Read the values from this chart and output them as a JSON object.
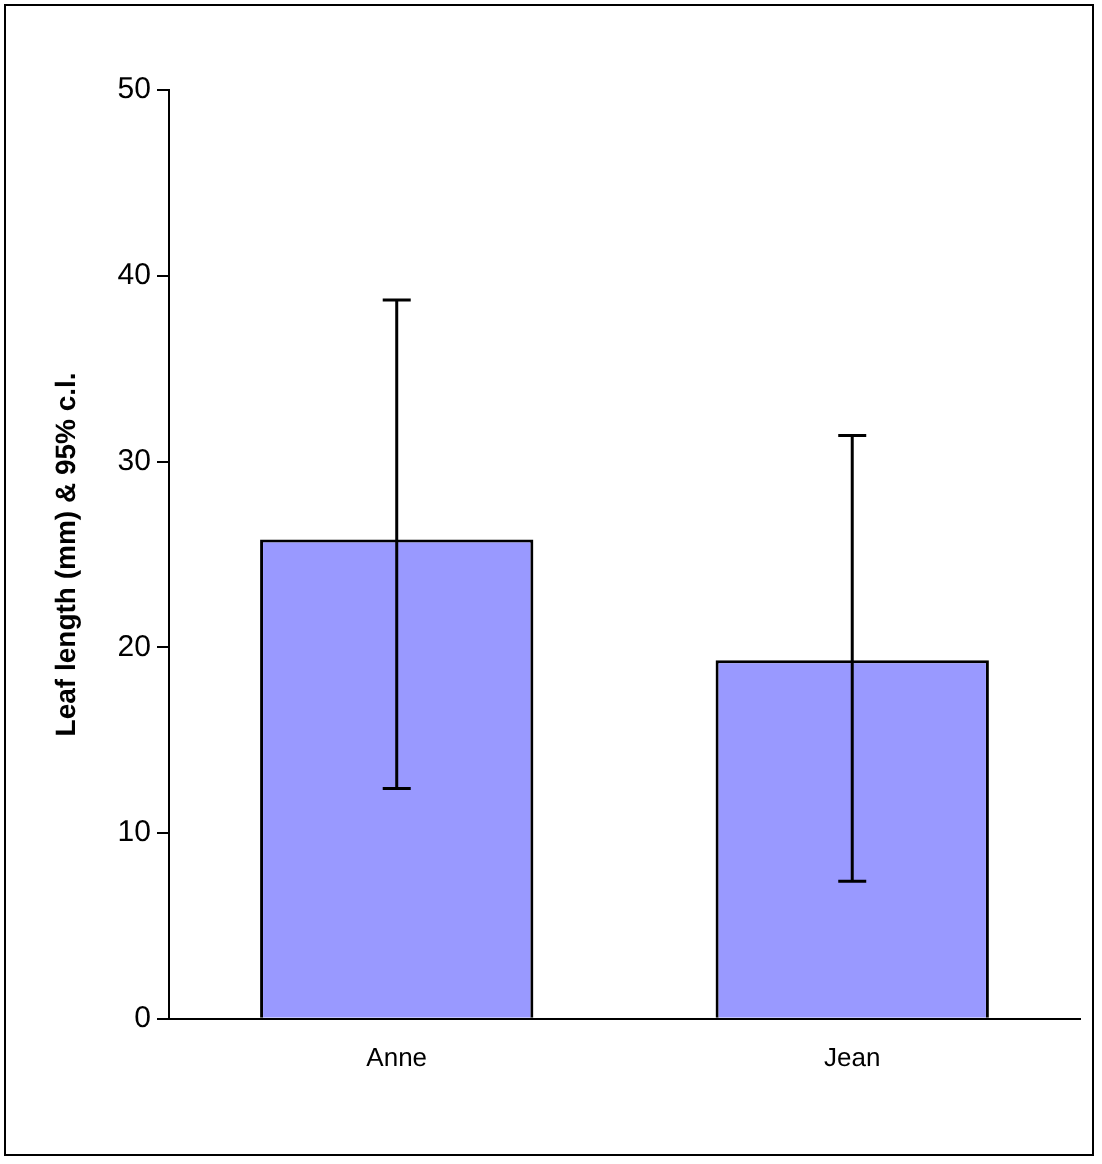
{
  "chart_data": {
    "type": "bar",
    "ylabel": "Leaf length (mm) & 95% c.l.",
    "categories": [
      "Anne",
      "Jean"
    ],
    "values": [
      25.8,
      19.3
    ],
    "color": "#9999ff",
    "errors": [
      [
        12.4,
        38.7
      ],
      [
        7.4,
        31.4
      ]
    ],
    "ylim": [
      0,
      50
    ],
    "yticks": [
      0,
      10,
      20,
      30,
      40,
      50
    ],
    "grid": false,
    "legend": false
  }
}
